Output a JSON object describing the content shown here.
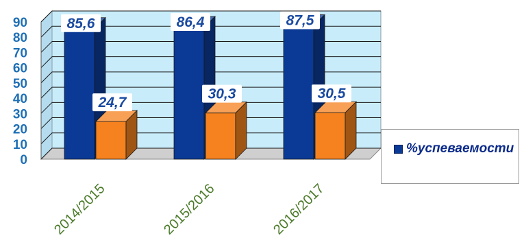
{
  "chart_data": {
    "type": "bar",
    "categories": [
      "2014/2015",
      "2015/2016",
      "2016/2017"
    ],
    "series": [
      {
        "name": "%успеваемости",
        "values": [
          85.6,
          86.4,
          87.5
        ],
        "labels": [
          "85,6",
          "86,4",
          "87,5"
        ],
        "color": "#0a3a96"
      },
      {
        "values": [
          24.7,
          30.3,
          30.5
        ],
        "labels": [
          "24,7",
          "30,3",
          "30,5"
        ],
        "color": "#f5821e"
      }
    ],
    "y_ticks": [
      "0",
      "10",
      "20",
      "30",
      "40",
      "50",
      "60",
      "70",
      "80",
      "90"
    ],
    "ylim": [
      0,
      90
    ],
    "grid": true,
    "legend_position": "right",
    "wall_color": "#c8ecfa",
    "axis_text_color": "#1e6fb5",
    "category_text_color": "#4a7a28",
    "data_label_color": "#1a4aa0"
  }
}
